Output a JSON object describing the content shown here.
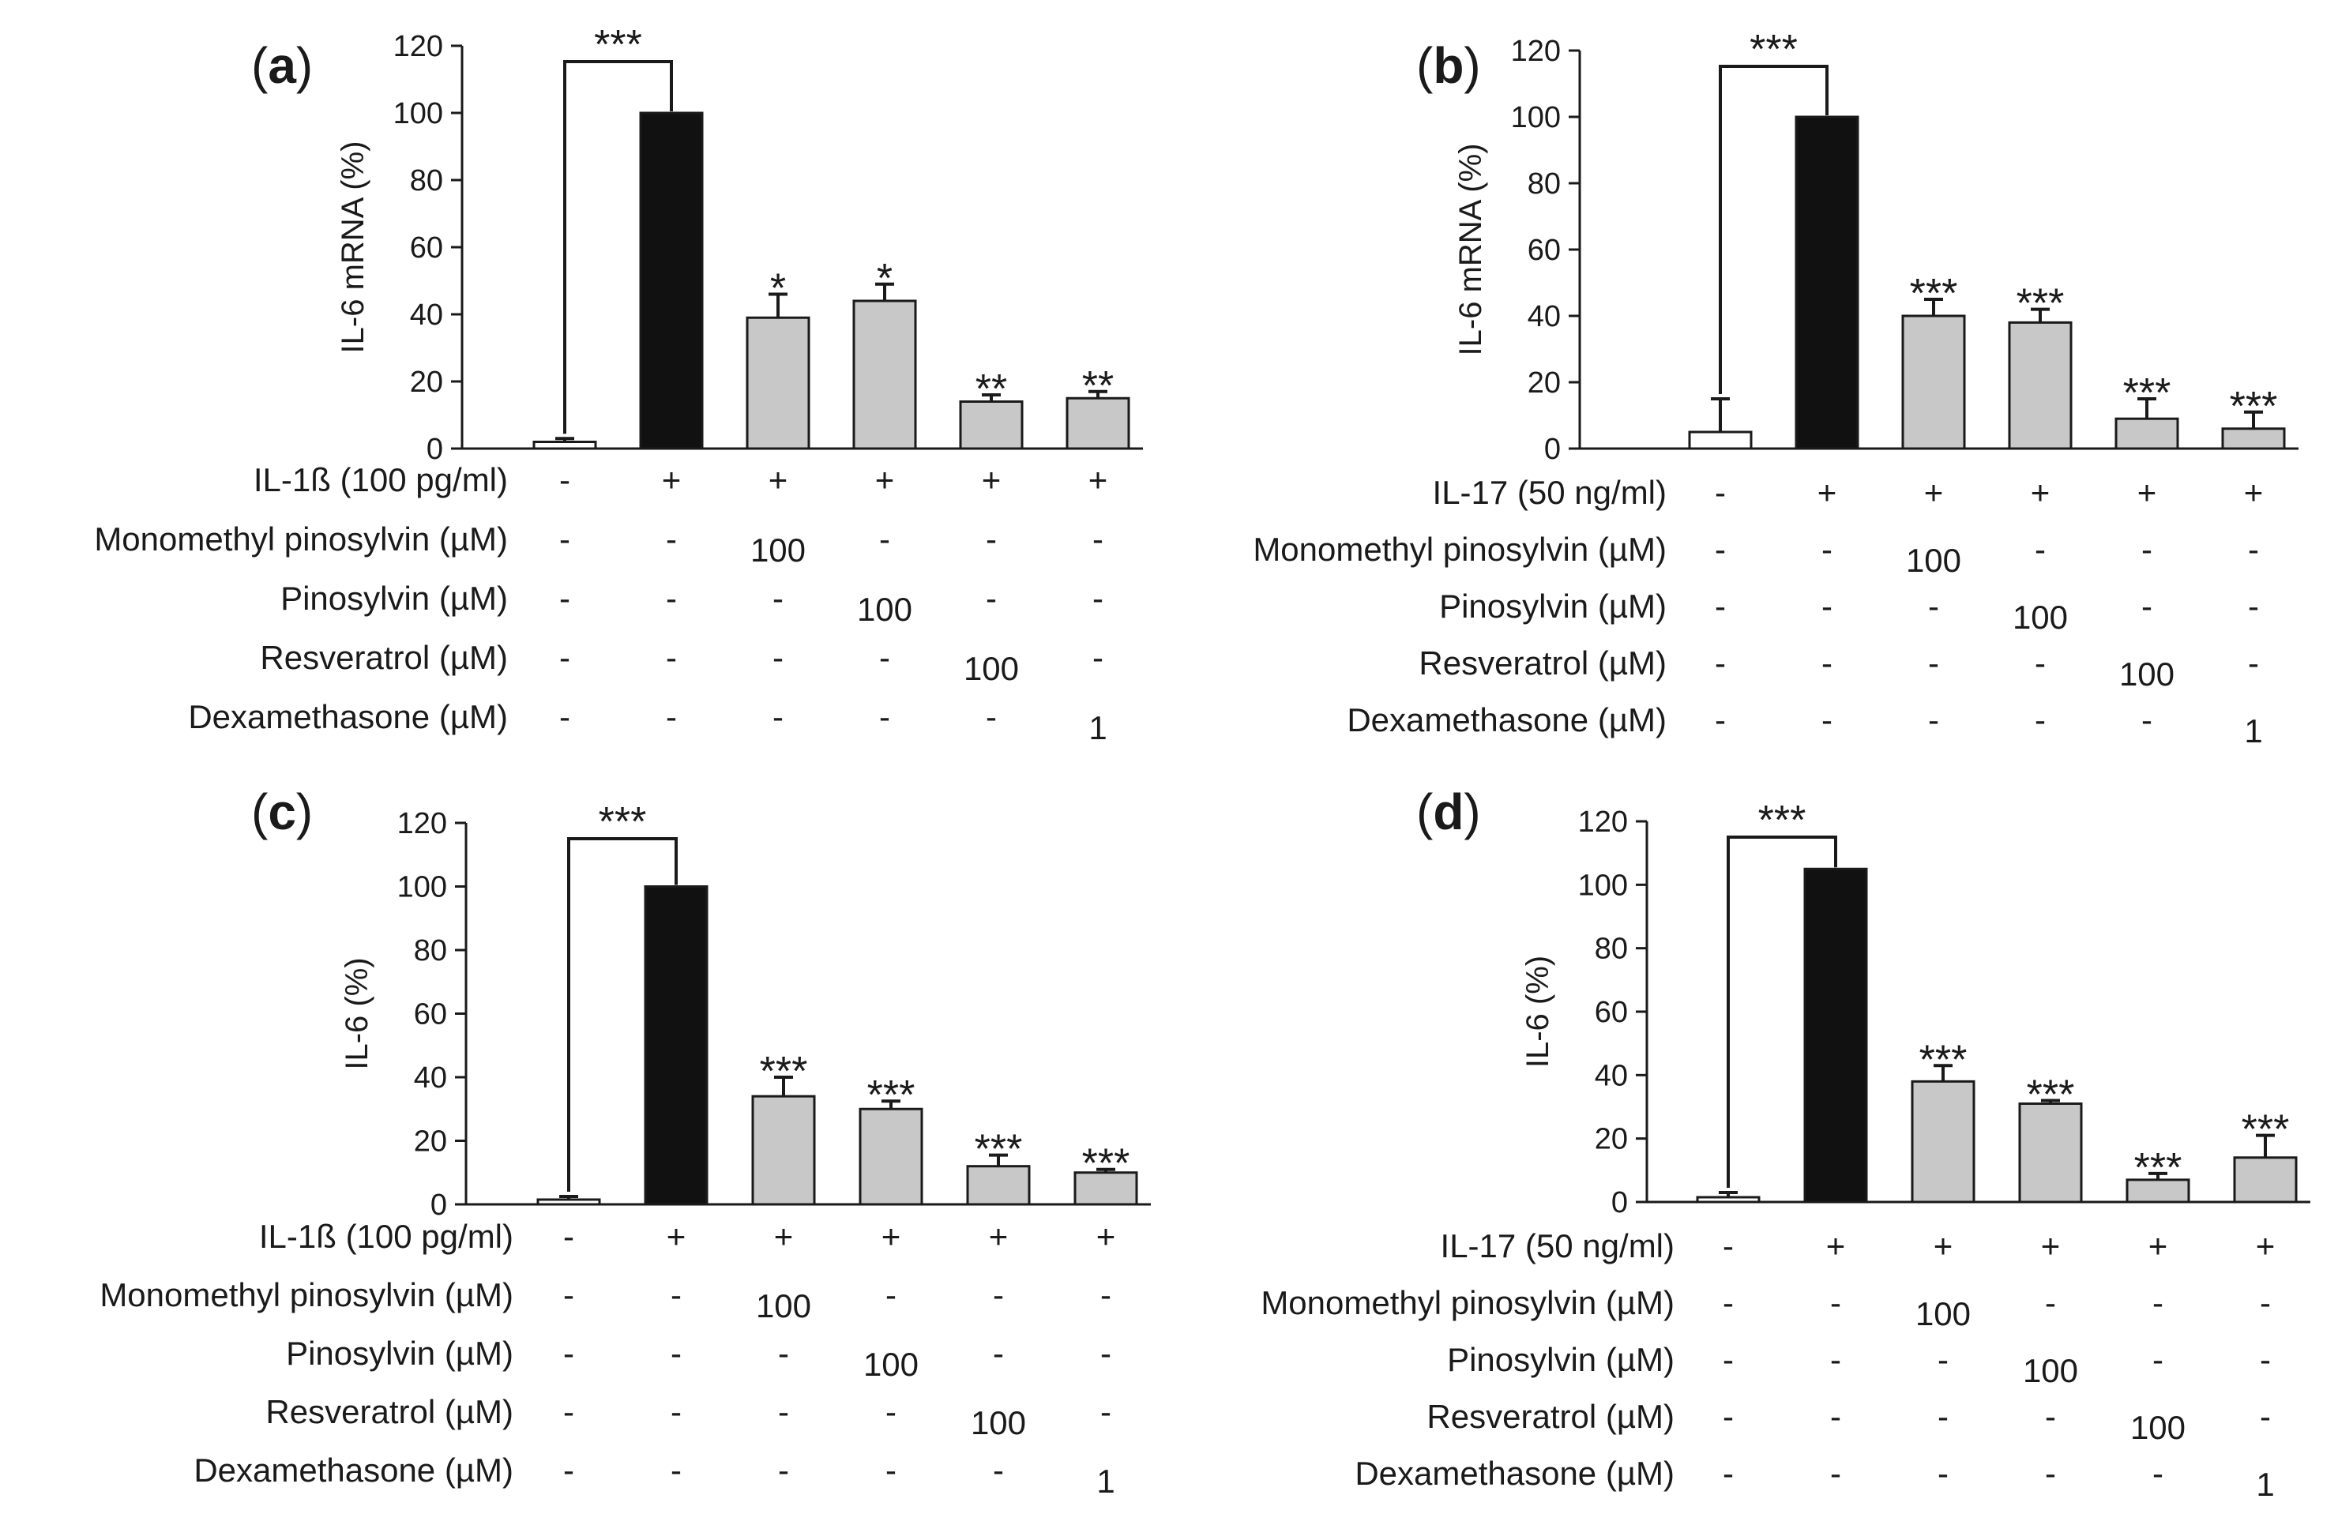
{
  "figure": {
    "bar_colors": {
      "control": "#ffffff",
      "stimulus": "#111111",
      "treatment": "#c8c8c8"
    },
    "stroke_color": "#1a1a1a"
  },
  "chart_data": [
    {
      "id": "a",
      "type": "bar",
      "panel_label": "a",
      "ylabel": "IL-6 mRNA (%)",
      "ylim": [
        0,
        120
      ],
      "yticks": [
        0,
        20,
        40,
        60,
        80,
        100,
        120
      ],
      "values": [
        2,
        100,
        39,
        44,
        14,
        15
      ],
      "errors": [
        1,
        0,
        7,
        5,
        2,
        2
      ],
      "significance": [
        "",
        "***",
        "*",
        "*",
        "**",
        "**"
      ],
      "bracket_label": "***",
      "treatment_rows": [
        {
          "label": "IL-1ß (100 pg/ml)",
          "cells": [
            "-",
            "+",
            "+",
            "+",
            "+",
            "+"
          ]
        },
        {
          "label": "Monomethyl pinosylvin (µM)",
          "cells": [
            "-",
            "-",
            "100",
            "-",
            "-",
            "-"
          ]
        },
        {
          "label": "Pinosylvin (µM)",
          "cells": [
            "-",
            "-",
            "-",
            "100",
            "-",
            "-"
          ]
        },
        {
          "label": "Resveratrol (µM)",
          "cells": [
            "-",
            "-",
            "-",
            "-",
            "100",
            "-"
          ]
        },
        {
          "label": "Dexamethasone (µM)",
          "cells": [
            "-",
            "-",
            "-",
            "-",
            "-",
            "1"
          ]
        }
      ]
    },
    {
      "id": "b",
      "type": "bar",
      "panel_label": "b",
      "ylabel": "IL-6 mRNA (%)",
      "ylim": [
        0,
        120
      ],
      "yticks": [
        0,
        20,
        40,
        60,
        80,
        100,
        120
      ],
      "values": [
        5,
        100,
        40,
        38,
        9,
        6
      ],
      "errors": [
        10,
        0,
        5,
        4,
        6,
        5
      ],
      "significance": [
        "",
        "***",
        "***",
        "***",
        "***",
        "***"
      ],
      "bracket_label": "***",
      "treatment_rows": [
        {
          "label": "IL-17 (50 ng/ml)",
          "cells": [
            "-",
            "+",
            "+",
            "+",
            "+",
            "+"
          ]
        },
        {
          "label": "Monomethyl pinosylvin (µM)",
          "cells": [
            "-",
            "-",
            "100",
            "-",
            "-",
            "-"
          ]
        },
        {
          "label": "Pinosylvin (µM)",
          "cells": [
            "-",
            "-",
            "-",
            "100",
            "-",
            "-"
          ]
        },
        {
          "label": "Resveratrol (µM)",
          "cells": [
            "-",
            "-",
            "-",
            "-",
            "100",
            "-"
          ]
        },
        {
          "label": "Dexamethasone (µM)",
          "cells": [
            "-",
            "-",
            "-",
            "-",
            "-",
            "1"
          ]
        }
      ]
    },
    {
      "id": "c",
      "type": "bar",
      "panel_label": "c",
      "ylabel": "IL-6 (%)",
      "ylim": [
        0,
        120
      ],
      "yticks": [
        0,
        20,
        40,
        60,
        80,
        100,
        120
      ],
      "values": [
        1.5,
        100,
        34,
        30,
        12,
        10
      ],
      "errors": [
        1,
        0,
        6,
        2.5,
        3.5,
        1
      ],
      "significance": [
        "",
        "***",
        "***",
        "***",
        "***",
        "***"
      ],
      "bracket_label": "***",
      "treatment_rows": [
        {
          "label": "IL-1ß (100 pg/ml)",
          "cells": [
            "-",
            "+",
            "+",
            "+",
            "+",
            "+"
          ]
        },
        {
          "label": "Monomethyl pinosylvin (µM)",
          "cells": [
            "-",
            "-",
            "100",
            "-",
            "-",
            "-"
          ]
        },
        {
          "label": "Pinosylvin (µM)",
          "cells": [
            "-",
            "-",
            "-",
            "100",
            "-",
            "-"
          ]
        },
        {
          "label": "Resveratrol (µM)",
          "cells": [
            "-",
            "-",
            "-",
            "-",
            "100",
            "-"
          ]
        },
        {
          "label": "Dexamethasone (µM)",
          "cells": [
            "-",
            "-",
            "-",
            "-",
            "-",
            "1"
          ]
        }
      ]
    },
    {
      "id": "d",
      "type": "bar",
      "panel_label": "d",
      "ylabel": "IL-6 (%)",
      "ylim": [
        0,
        120
      ],
      "yticks": [
        0,
        20,
        40,
        60,
        80,
        100,
        120
      ],
      "values": [
        1.5,
        105,
        38,
        31,
        7,
        14
      ],
      "errors": [
        1.5,
        0,
        5,
        1,
        2,
        7
      ],
      "significance": [
        "",
        "***",
        "***",
        "***",
        "***",
        "***"
      ],
      "bracket_label": "***",
      "treatment_rows": [
        {
          "label": "IL-17 (50 ng/ml)",
          "cells": [
            "-",
            "+",
            "+",
            "+",
            "+",
            "+"
          ]
        },
        {
          "label": "Monomethyl pinosylvin (µM)",
          "cells": [
            "-",
            "-",
            "100",
            "-",
            "-",
            "-"
          ]
        },
        {
          "label": "Pinosylvin (µM)",
          "cells": [
            "-",
            "-",
            "-",
            "100",
            "-",
            "-"
          ]
        },
        {
          "label": "Resveratrol (µM)",
          "cells": [
            "-",
            "-",
            "-",
            "-",
            "100",
            "-"
          ]
        },
        {
          "label": "Dexamethasone (µM)",
          "cells": [
            "-",
            "-",
            "-",
            "-",
            "-",
            "1"
          ]
        }
      ]
    }
  ]
}
